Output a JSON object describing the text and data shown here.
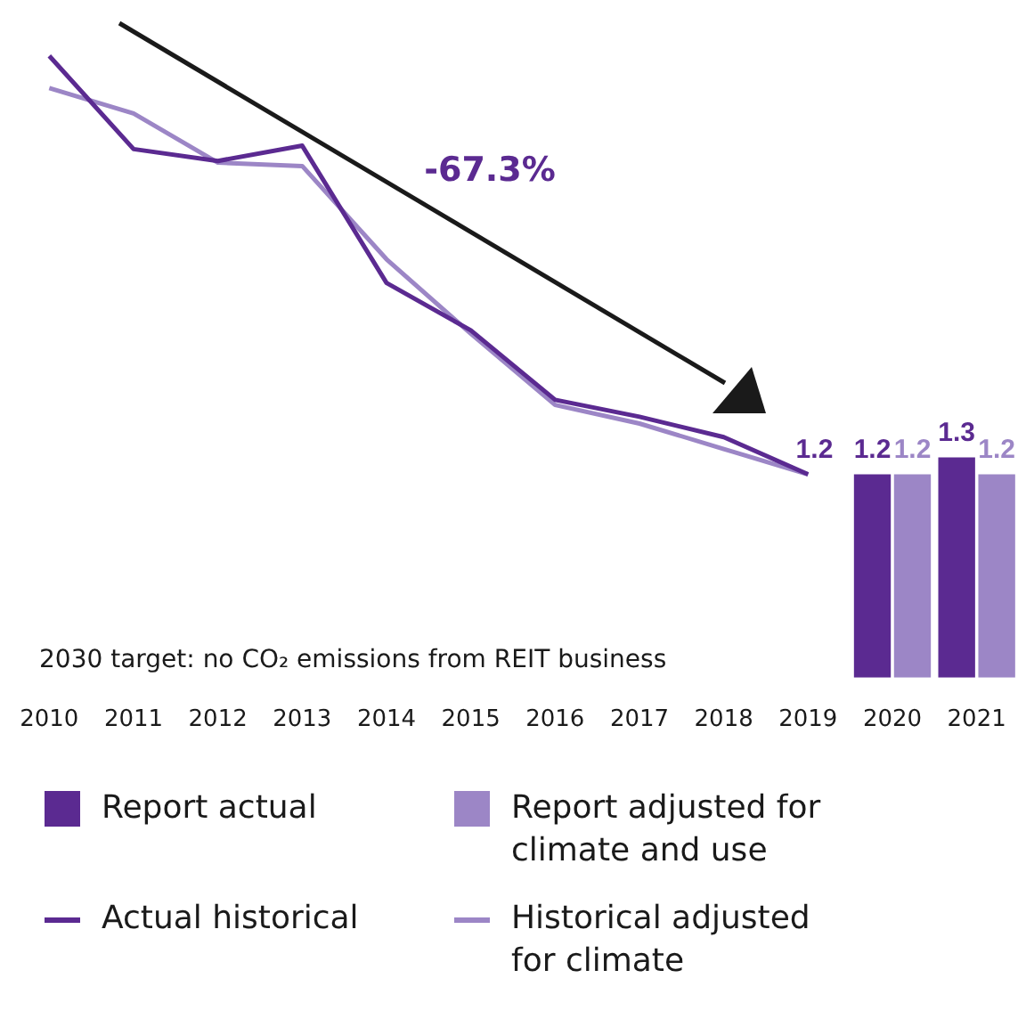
{
  "chart_data": {
    "type": "bar",
    "categories": [
      "2010",
      "2011",
      "2012",
      "2013",
      "2014",
      "2015",
      "2016",
      "2017",
      "2018",
      "2019",
      "2020",
      "2021"
    ],
    "series": [
      {
        "name": "Report actual",
        "color": "#5b2a91",
        "values": [
          null,
          null,
          null,
          null,
          null,
          null,
          null,
          null,
          null,
          null,
          1.2,
          1.3
        ],
        "value_labels": [
          null,
          null,
          null,
          null,
          null,
          null,
          null,
          null,
          null,
          null,
          "1.2",
          "1.3"
        ]
      },
      {
        "name": "Report adjusted for climate and use",
        "color": "#9c86c6",
        "values": [
          null,
          null,
          null,
          null,
          null,
          null,
          null,
          null,
          null,
          null,
          1.2,
          1.2
        ],
        "value_labels": [
          null,
          null,
          null,
          null,
          null,
          null,
          null,
          null,
          null,
          null,
          "1.2",
          "1.2"
        ]
      },
      {
        "name": "Actual historical",
        "type": "line",
        "color": "#5b2a91",
        "values": [
          3.67,
          3.12,
          3.05,
          3.14,
          2.33,
          2.05,
          1.64,
          1.54,
          1.42,
          1.2,
          null,
          null
        ],
        "value_labels": [
          null,
          null,
          null,
          null,
          null,
          null,
          null,
          null,
          null,
          "1.2",
          null,
          null
        ]
      },
      {
        "name": "Historical adjusted for climate",
        "type": "line",
        "color": "#9c86c6",
        "values": [
          3.48,
          3.33,
          3.04,
          3.02,
          2.47,
          2.03,
          1.61,
          1.5,
          1.35,
          1.2,
          null,
          null
        ]
      }
    ],
    "tick_labels": "x",
    "grid": false,
    "legend": "bottom",
    "marker": "none",
    "annotations": [
      "-67.3%",
      "2030 target: no CO₂ emissions from REIT business"
    ]
  }
}
